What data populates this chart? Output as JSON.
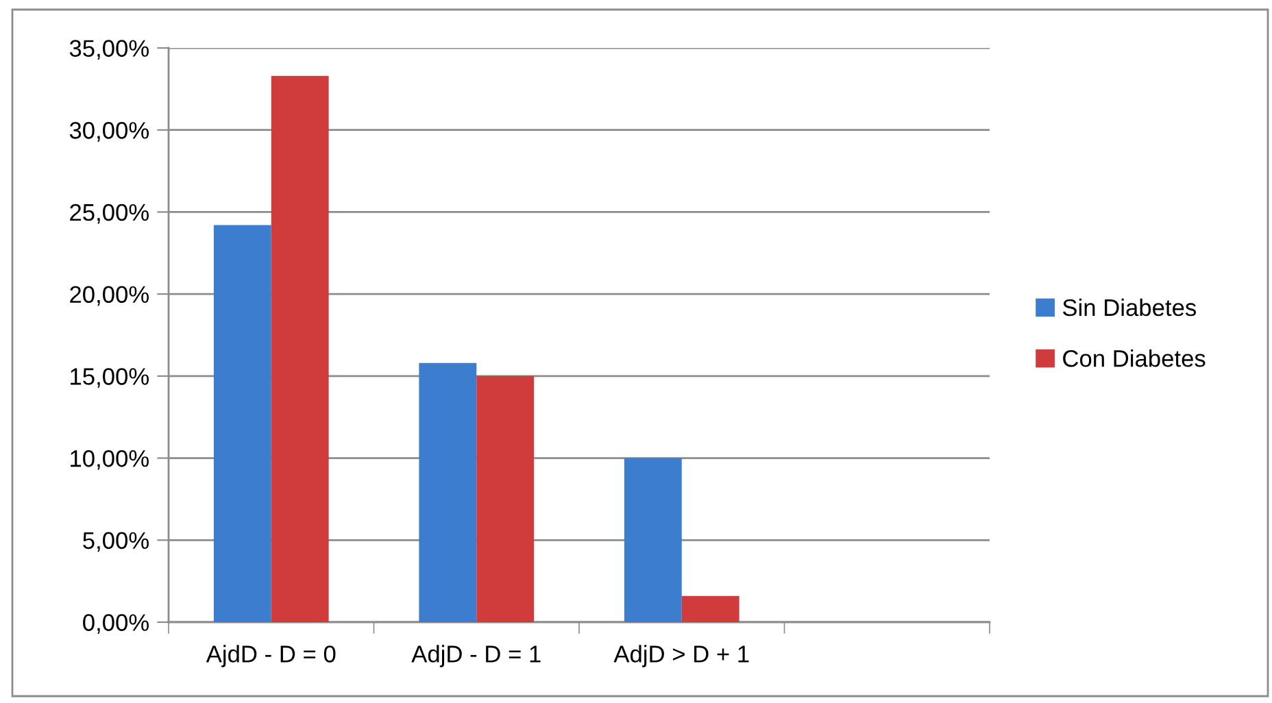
{
  "chart_data": {
    "type": "bar",
    "categories": [
      "AjdD - D = 0",
      "AdjD - D = 1",
      "AdjD > D + 1",
      null
    ],
    "series": [
      {
        "name": "Sin Diabetes",
        "color": "#3c7dd0",
        "values": [
          24.2,
          15.8,
          10.0,
          null
        ]
      },
      {
        "name": "Con Diabetes",
        "color": "#d03c3c",
        "values": [
          33.3,
          15.0,
          1.6,
          null
        ]
      }
    ],
    "ylim": [
      0,
      35
    ],
    "yticks": [
      {
        "value": 0,
        "label": "0,00%"
      },
      {
        "value": 5,
        "label": "5,00%"
      },
      {
        "value": 10,
        "label": "10,00%"
      },
      {
        "value": 15,
        "label": "15,00%"
      },
      {
        "value": 20,
        "label": "20,00%"
      },
      {
        "value": 25,
        "label": "25,00%"
      },
      {
        "value": 30,
        "label": "30,00%"
      },
      {
        "value": 35,
        "label": "35,00%"
      }
    ],
    "grid": "y",
    "legend": "right"
  }
}
